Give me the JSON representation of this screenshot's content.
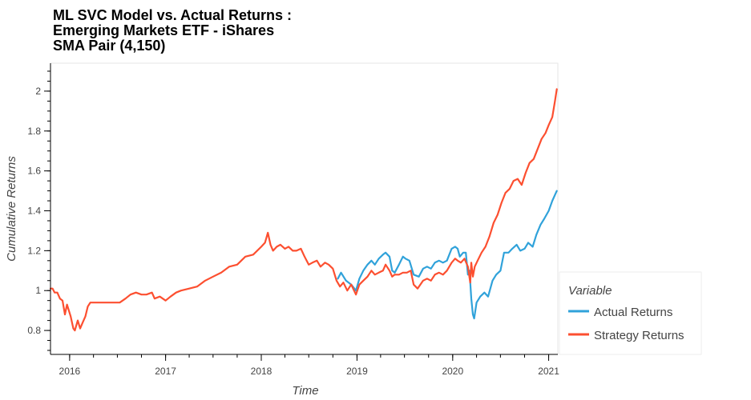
{
  "chart_data": {
    "type": "line",
    "title": [
      "ML SVC Model vs. Actual Returns :",
      "Emerging Markets ETF - iShares",
      "SMA Pair (4,150)"
    ],
    "xlabel": "Time",
    "ylabel": "Cumulative Returns",
    "x_ticks": [
      "2016",
      "2017",
      "2018",
      "2019",
      "2020",
      "2021"
    ],
    "y_ticks": [
      "0.8",
      "1",
      "1.2",
      "1.4",
      "1.6",
      "1.8",
      "2"
    ],
    "xlim": [
      "2015-10-20",
      "2021-02-05"
    ],
    "ylim": [
      0.68,
      2.14
    ],
    "grid": false,
    "legend": {
      "title": "Variable",
      "position": "right"
    },
    "series": [
      {
        "name": "Actual Returns",
        "color": "#30a2da",
        "points": [
          [
            "2018-10-20",
            1.06
          ],
          [
            "2018-11-01",
            1.09
          ],
          [
            "2018-11-20",
            1.05
          ],
          [
            "2018-12-10",
            1.03
          ],
          [
            "2018-12-28",
            1.0
          ],
          [
            "2019-01-10",
            1.06
          ],
          [
            "2019-01-25",
            1.1
          ],
          [
            "2019-02-10",
            1.13
          ],
          [
            "2019-02-25",
            1.15
          ],
          [
            "2019-03-10",
            1.13
          ],
          [
            "2019-03-25",
            1.16
          ],
          [
            "2019-04-10",
            1.18
          ],
          [
            "2019-04-20",
            1.19
          ],
          [
            "2019-05-05",
            1.17
          ],
          [
            "2019-05-15",
            1.1
          ],
          [
            "2019-05-25",
            1.09
          ],
          [
            "2019-06-10",
            1.13
          ],
          [
            "2019-06-25",
            1.17
          ],
          [
            "2019-07-05",
            1.16
          ],
          [
            "2019-07-20",
            1.15
          ],
          [
            "2019-08-05",
            1.08
          ],
          [
            "2019-08-25",
            1.07
          ],
          [
            "2019-09-10",
            1.11
          ],
          [
            "2019-09-25",
            1.12
          ],
          [
            "2019-10-10",
            1.11
          ],
          [
            "2019-10-25",
            1.14
          ],
          [
            "2019-11-10",
            1.15
          ],
          [
            "2019-11-25",
            1.14
          ],
          [
            "2019-12-10",
            1.15
          ],
          [
            "2019-12-28",
            1.21
          ],
          [
            "2020-01-10",
            1.22
          ],
          [
            "2020-01-20",
            1.21
          ],
          [
            "2020-01-28",
            1.17
          ],
          [
            "2020-02-10",
            1.19
          ],
          [
            "2020-02-20",
            1.19
          ],
          [
            "2020-02-28",
            1.08
          ],
          [
            "2020-03-05",
            1.1
          ],
          [
            "2020-03-12",
            0.96
          ],
          [
            "2020-03-18",
            0.88
          ],
          [
            "2020-03-23",
            0.86
          ],
          [
            "2020-04-01",
            0.94
          ],
          [
            "2020-04-15",
            0.97
          ],
          [
            "2020-05-01",
            0.99
          ],
          [
            "2020-05-15",
            0.97
          ],
          [
            "2020-06-01",
            1.05
          ],
          [
            "2020-06-15",
            1.08
          ],
          [
            "2020-07-01",
            1.1
          ],
          [
            "2020-07-15",
            1.19
          ],
          [
            "2020-08-01",
            1.19
          ],
          [
            "2020-08-15",
            1.21
          ],
          [
            "2020-09-01",
            1.23
          ],
          [
            "2020-09-15",
            1.2
          ],
          [
            "2020-10-01",
            1.21
          ],
          [
            "2020-10-15",
            1.24
          ],
          [
            "2020-11-01",
            1.22
          ],
          [
            "2020-11-15",
            1.28
          ],
          [
            "2020-12-01",
            1.33
          ],
          [
            "2020-12-15",
            1.36
          ],
          [
            "2021-01-01",
            1.4
          ],
          [
            "2021-01-15",
            1.45
          ],
          [
            "2021-02-01",
            1.5
          ]
        ]
      },
      {
        "name": "Strategy Returns",
        "color": "#fc4f30",
        "points": [
          [
            "2015-10-20",
            1.01
          ],
          [
            "2015-10-28",
            1.01
          ],
          [
            "2015-11-05",
            0.99
          ],
          [
            "2015-11-15",
            0.99
          ],
          [
            "2015-11-25",
            0.96
          ],
          [
            "2015-12-05",
            0.95
          ],
          [
            "2015-12-14",
            0.88
          ],
          [
            "2015-12-22",
            0.93
          ],
          [
            "2016-01-05",
            0.87
          ],
          [
            "2016-01-15",
            0.81
          ],
          [
            "2016-01-21",
            0.8
          ],
          [
            "2016-02-01",
            0.85
          ],
          [
            "2016-02-10",
            0.81
          ],
          [
            "2016-02-20",
            0.84
          ],
          [
            "2016-03-01",
            0.87
          ],
          [
            "2016-03-10",
            0.92
          ],
          [
            "2016-03-20",
            0.94
          ],
          [
            "2016-04-10",
            0.94
          ],
          [
            "2016-05-10",
            0.94
          ],
          [
            "2016-06-10",
            0.94
          ],
          [
            "2016-07-10",
            0.94
          ],
          [
            "2016-08-01",
            0.96
          ],
          [
            "2016-08-20",
            0.98
          ],
          [
            "2016-09-10",
            0.99
          ],
          [
            "2016-10-01",
            0.98
          ],
          [
            "2016-10-20",
            0.98
          ],
          [
            "2016-11-10",
            0.99
          ],
          [
            "2016-11-20",
            0.96
          ],
          [
            "2016-12-10",
            0.97
          ],
          [
            "2017-01-01",
            0.95
          ],
          [
            "2017-01-20",
            0.97
          ],
          [
            "2017-02-10",
            0.99
          ],
          [
            "2017-03-01",
            1.0
          ],
          [
            "2017-04-01",
            1.01
          ],
          [
            "2017-05-01",
            1.02
          ],
          [
            "2017-06-01",
            1.05
          ],
          [
            "2017-07-01",
            1.07
          ],
          [
            "2017-08-01",
            1.09
          ],
          [
            "2017-09-01",
            1.12
          ],
          [
            "2017-10-01",
            1.13
          ],
          [
            "2017-11-01",
            1.17
          ],
          [
            "2017-12-01",
            1.18
          ],
          [
            "2018-01-01",
            1.22
          ],
          [
            "2018-01-15",
            1.24
          ],
          [
            "2018-01-26",
            1.29
          ],
          [
            "2018-02-05",
            1.23
          ],
          [
            "2018-02-15",
            1.2
          ],
          [
            "2018-03-01",
            1.22
          ],
          [
            "2018-03-15",
            1.23
          ],
          [
            "2018-04-01",
            1.21
          ],
          [
            "2018-04-15",
            1.22
          ],
          [
            "2018-05-01",
            1.2
          ],
          [
            "2018-05-15",
            1.2
          ],
          [
            "2018-06-01",
            1.21
          ],
          [
            "2018-06-15",
            1.17
          ],
          [
            "2018-07-01",
            1.13
          ],
          [
            "2018-07-15",
            1.14
          ],
          [
            "2018-08-01",
            1.15
          ],
          [
            "2018-08-15",
            1.12
          ],
          [
            "2018-09-01",
            1.14
          ],
          [
            "2018-09-15",
            1.13
          ],
          [
            "2018-10-01",
            1.11
          ],
          [
            "2018-10-15",
            1.05
          ],
          [
            "2018-10-28",
            1.02
          ],
          [
            "2018-11-10",
            1.04
          ],
          [
            "2018-11-25",
            1.0
          ],
          [
            "2018-12-10",
            1.03
          ],
          [
            "2018-12-28",
            0.98
          ],
          [
            "2019-01-10",
            1.03
          ],
          [
            "2019-01-25",
            1.05
          ],
          [
            "2019-02-10",
            1.07
          ],
          [
            "2019-02-25",
            1.1
          ],
          [
            "2019-03-10",
            1.08
          ],
          [
            "2019-03-25",
            1.09
          ],
          [
            "2019-04-10",
            1.1
          ],
          [
            "2019-04-20",
            1.13
          ],
          [
            "2019-05-05",
            1.1
          ],
          [
            "2019-05-15",
            1.07
          ],
          [
            "2019-05-25",
            1.08
          ],
          [
            "2019-06-10",
            1.08
          ],
          [
            "2019-06-25",
            1.09
          ],
          [
            "2019-07-10",
            1.09
          ],
          [
            "2019-07-25",
            1.1
          ],
          [
            "2019-08-05",
            1.03
          ],
          [
            "2019-08-20",
            1.01
          ],
          [
            "2019-09-10",
            1.05
          ],
          [
            "2019-09-25",
            1.06
          ],
          [
            "2019-10-10",
            1.05
          ],
          [
            "2019-10-25",
            1.08
          ],
          [
            "2019-11-10",
            1.09
          ],
          [
            "2019-11-25",
            1.08
          ],
          [
            "2019-12-10",
            1.1
          ],
          [
            "2019-12-28",
            1.14
          ],
          [
            "2020-01-10",
            1.16
          ],
          [
            "2020-01-20",
            1.15
          ],
          [
            "2020-02-01",
            1.14
          ],
          [
            "2020-02-15",
            1.16
          ],
          [
            "2020-02-28",
            1.12
          ],
          [
            "2020-03-08",
            1.04
          ],
          [
            "2020-03-12",
            1.14
          ],
          [
            "2020-03-18",
            1.07
          ],
          [
            "2020-03-25",
            1.12
          ],
          [
            "2020-04-05",
            1.15
          ],
          [
            "2020-04-20",
            1.19
          ],
          [
            "2020-05-05",
            1.22
          ],
          [
            "2020-05-20",
            1.27
          ],
          [
            "2020-06-05",
            1.34
          ],
          [
            "2020-06-20",
            1.38
          ],
          [
            "2020-07-05",
            1.44
          ],
          [
            "2020-07-20",
            1.49
          ],
          [
            "2020-08-05",
            1.51
          ],
          [
            "2020-08-20",
            1.55
          ],
          [
            "2020-09-05",
            1.56
          ],
          [
            "2020-09-20",
            1.53
          ],
          [
            "2020-10-05",
            1.59
          ],
          [
            "2020-10-20",
            1.64
          ],
          [
            "2020-11-05",
            1.66
          ],
          [
            "2020-11-20",
            1.71
          ],
          [
            "2020-12-05",
            1.76
          ],
          [
            "2020-12-20",
            1.79
          ],
          [
            "2021-01-01",
            1.83
          ],
          [
            "2021-01-15",
            1.87
          ],
          [
            "2021-01-25",
            1.95
          ],
          [
            "2021-02-01",
            2.01
          ]
        ]
      }
    ]
  }
}
